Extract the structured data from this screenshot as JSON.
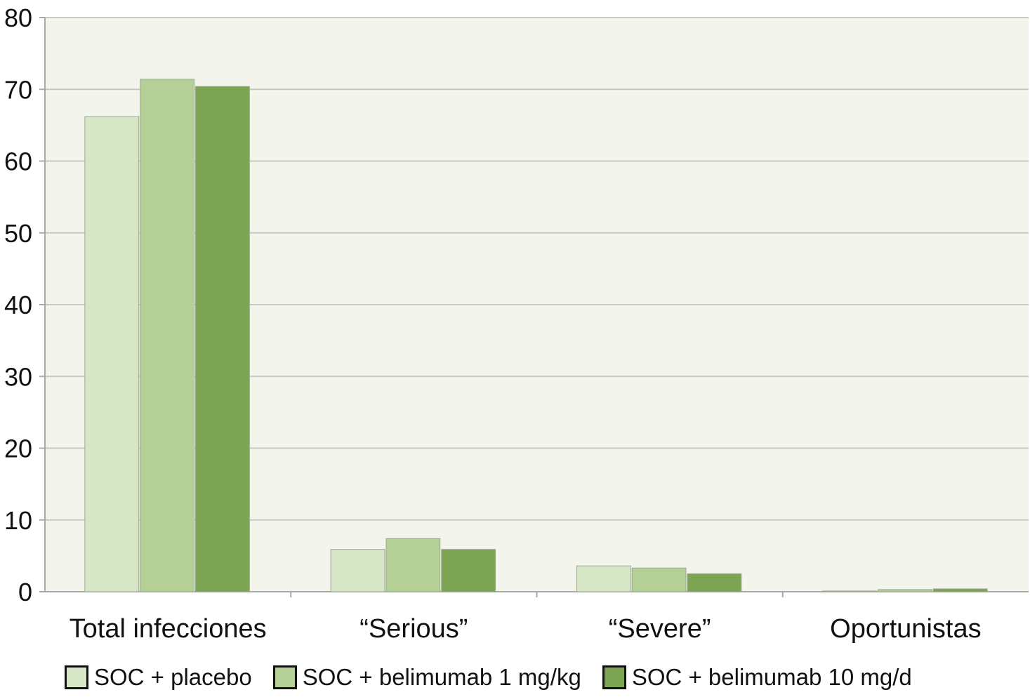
{
  "chart_data": {
    "type": "bar",
    "categories": [
      "Total infecciones",
      "“Serious”",
      "“Severe”",
      "Oportunistas"
    ],
    "series": [
      {
        "name": "SOC + placebo",
        "values": [
          66.2,
          5.9,
          3.6,
          0.1
        ],
        "color": "#d8e6c8"
      },
      {
        "name": "SOC + belimumab 1 mg/kg",
        "values": [
          71.4,
          7.4,
          3.3,
          0.3
        ],
        "color": "#b5d096"
      },
      {
        "name": "SOC + belimumab 10 mg/d",
        "values": [
          70.4,
          5.9,
          2.5,
          0.4
        ],
        "color": "#7da452"
      }
    ],
    "yticks": [
      "0",
      "10",
      "20",
      "30",
      "40",
      "50",
      "60",
      "70",
      "80"
    ],
    "ylim": [
      0,
      80
    ],
    "grid": true,
    "legend_position": "bottom",
    "plot_background": "#f3f5ec",
    "gridline_color": "#c8cbc4"
  }
}
